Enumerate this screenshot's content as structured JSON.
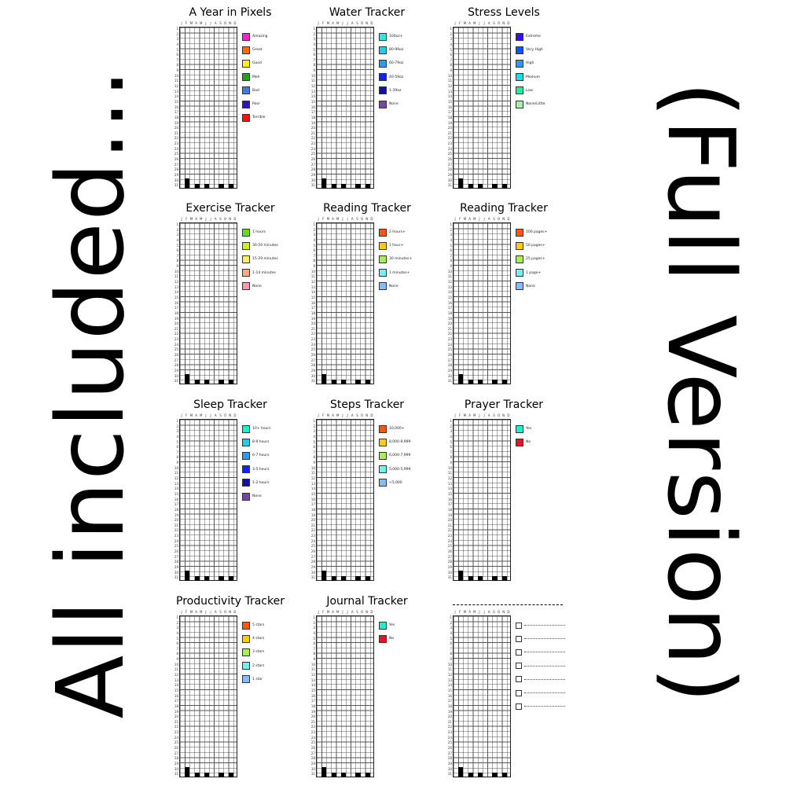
{
  "left_text": "All included...",
  "right_text": "(Full Version)",
  "months": [
    "J",
    "F",
    "M",
    "A",
    "M",
    "J",
    "J",
    "A",
    "S",
    "O",
    "N",
    "D"
  ],
  "days": [
    "1",
    "2",
    "3",
    "4",
    "5",
    "6",
    "7",
    "8",
    "9",
    "10",
    "11",
    "12",
    "13",
    "14",
    "15",
    "16",
    "17",
    "18",
    "19",
    "20",
    "21",
    "22",
    "23",
    "24",
    "25",
    "26",
    "27",
    "28",
    "29",
    "30",
    "31"
  ],
  "trackers": [
    {
      "title": "A Year in Pixels",
      "legend": [
        {
          "label": "Amazing",
          "color": "#ff22cc"
        },
        {
          "label": "Great",
          "color": "#ff6a10"
        },
        {
          "label": "Good",
          "color": "#ffee22"
        },
        {
          "label": "Meh",
          "color": "#22a022"
        },
        {
          "label": "Bad",
          "color": "#4477ee"
        },
        {
          "label": "Poor",
          "color": "#3311bb"
        },
        {
          "label": "Terrible",
          "color": "#ff1111"
        }
      ]
    },
    {
      "title": "Water Tracker",
      "legend": [
        {
          "label": "100oz+",
          "color": "#22eedd"
        },
        {
          "label": "80-99oz",
          "color": "#22ccee"
        },
        {
          "label": "60-79oz",
          "color": "#3399ee"
        },
        {
          "label": "40-59oz",
          "color": "#1122ff"
        },
        {
          "label": "1-39oz",
          "color": "#1111aa"
        },
        {
          "label": "None",
          "color": "#7744aa"
        }
      ]
    },
    {
      "title": "Stress Levels",
      "legend": [
        {
          "label": "Extreme",
          "color": "#3311ee"
        },
        {
          "label": "Very High",
          "color": "#1155ee"
        },
        {
          "label": "High",
          "color": "#3399ee"
        },
        {
          "label": "Medium",
          "color": "#22dddd"
        },
        {
          "label": "Low",
          "color": "#22ee99"
        },
        {
          "label": "None/Little",
          "color": "#aaeeaa"
        }
      ]
    },
    {
      "title": "Exercise Tracker",
      "legend": [
        {
          "label": "1 hours",
          "color": "#66dd22"
        },
        {
          "label": "30-59 minutes",
          "color": "#ccee22"
        },
        {
          "label": "15-29 minutes",
          "color": "#ffee66"
        },
        {
          "label": "1-14 minutes",
          "color": "#ffaa88"
        },
        {
          "label": "None",
          "color": "#ff99aa"
        }
      ]
    },
    {
      "title": "Reading Tracker",
      "legend": [
        {
          "label": "2 hours+",
          "color": "#ff5511"
        },
        {
          "label": "1 hour+",
          "color": "#ffcc00"
        },
        {
          "label": "30 minutes+",
          "color": "#aaee55"
        },
        {
          "label": "1 minutes+",
          "color": "#77eeee"
        },
        {
          "label": "None",
          "color": "#88bbff"
        }
      ]
    },
    {
      "title": "Reading Tracker",
      "legend": [
        {
          "label": "100 pages+",
          "color": "#ff5511"
        },
        {
          "label": "50 pages+",
          "color": "#ffcc00"
        },
        {
          "label": "25 pages+",
          "color": "#aaee55"
        },
        {
          "label": "1 page+",
          "color": "#77eeee"
        },
        {
          "label": "None",
          "color": "#88bbff"
        }
      ]
    },
    {
      "title": "Sleep Tracker",
      "legend": [
        {
          "label": "10+ hours",
          "color": "#22eecc"
        },
        {
          "label": "8-9 hours",
          "color": "#22ccee"
        },
        {
          "label": "6-7 hours",
          "color": "#3399ee"
        },
        {
          "label": "3-5 hours",
          "color": "#1122ff"
        },
        {
          "label": "1-2 hours",
          "color": "#1111aa"
        },
        {
          "label": "None",
          "color": "#7744aa"
        }
      ]
    },
    {
      "title": "Steps Tracker",
      "legend": [
        {
          "label": "10,000+",
          "color": "#ff5511"
        },
        {
          "label": "8,000-9,999",
          "color": "#ffcc00"
        },
        {
          "label": "6,000-7,999",
          "color": "#aaee55"
        },
        {
          "label": "5,000-5,999",
          "color": "#77eeee"
        },
        {
          "label": "<5,000",
          "color": "#88bbff"
        }
      ]
    },
    {
      "title": "Prayer Tracker",
      "legend": [
        {
          "label": "Yes",
          "color": "#22eecc"
        },
        {
          "label": "No",
          "color": "#ee1122"
        }
      ]
    },
    {
      "title": "Productivity Tracker",
      "legend": [
        {
          "label": "5 stars",
          "color": "#ff5511"
        },
        {
          "label": "4 stars",
          "color": "#ffcc00"
        },
        {
          "label": "3 stars",
          "color": "#aaee55"
        },
        {
          "label": "2 stars",
          "color": "#77eeee"
        },
        {
          "label": "1 star",
          "color": "#88bbff"
        }
      ]
    },
    {
      "title": "Journal Tracker",
      "legend": [
        {
          "label": "Yes",
          "color": "#22eecc"
        },
        {
          "label": "No",
          "color": "#ee1122"
        }
      ]
    },
    {
      "title": "",
      "blank": true,
      "checkbox_lines": 7
    }
  ]
}
